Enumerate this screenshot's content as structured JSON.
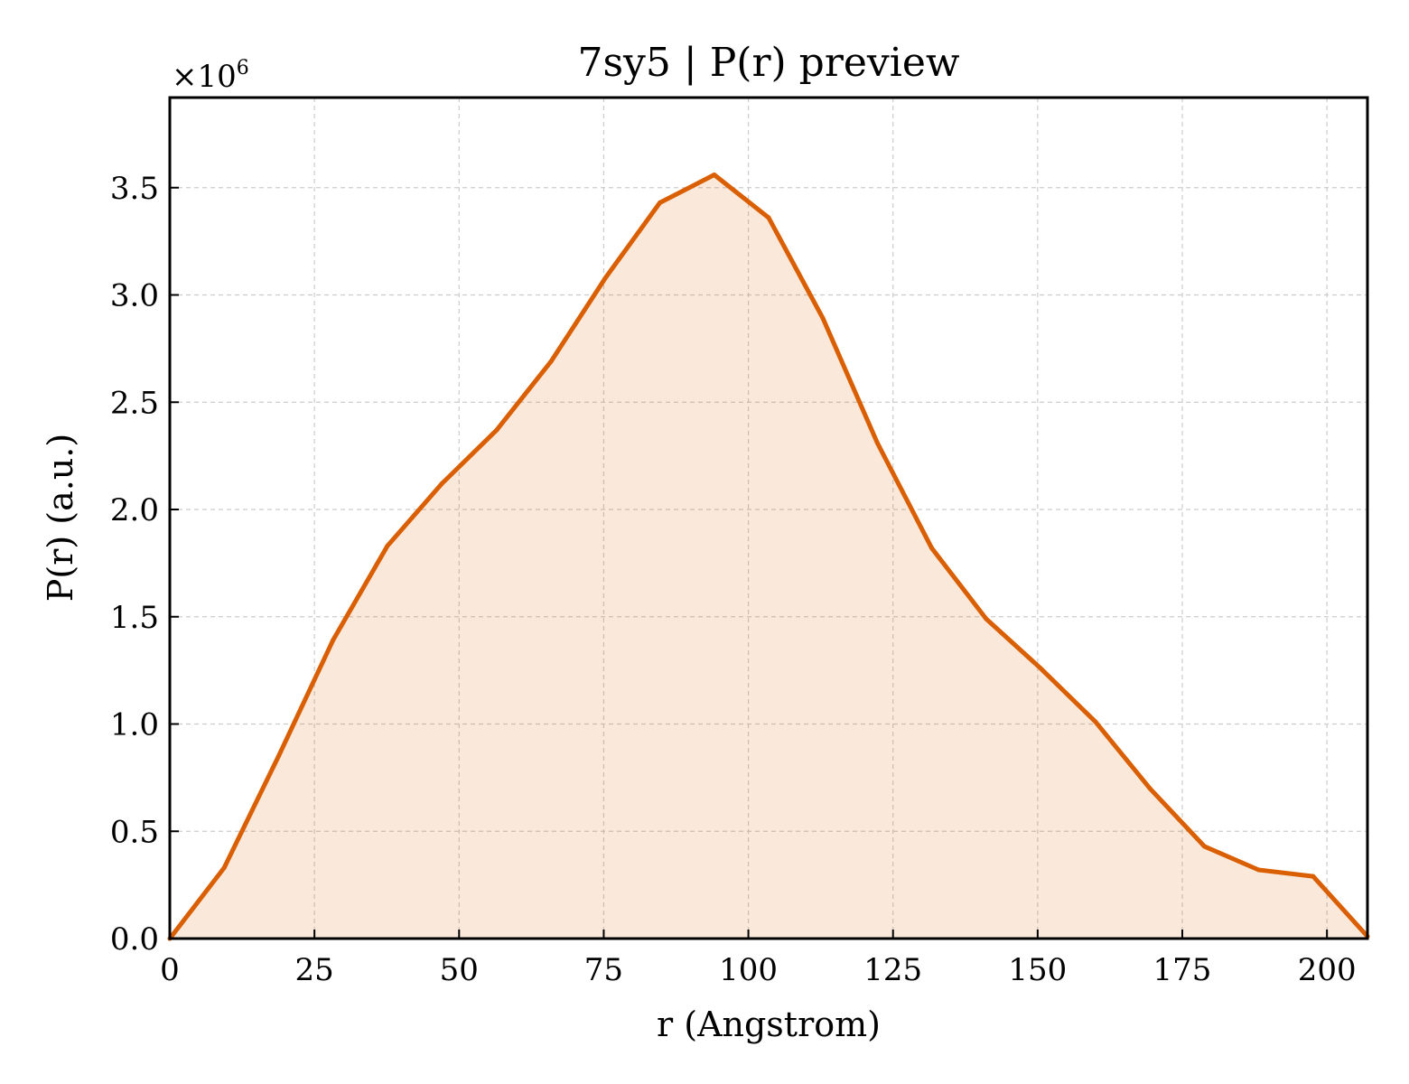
{
  "chart_data": {
    "type": "area",
    "title": "7sy5 | P(r) preview",
    "xlabel": "r (Angstrom)",
    "ylabel": "P(r) (a.u.)",
    "y_offset_label": "×10",
    "y_offset_exponent": "6",
    "xlim": [
      0,
      207
    ],
    "ylim": [
      0,
      3.92
    ],
    "x_ticks": [
      0,
      25,
      50,
      75,
      100,
      125,
      150,
      175,
      200
    ],
    "x_tick_labels": [
      "0",
      "25",
      "50",
      "75",
      "100",
      "125",
      "150",
      "175",
      "200"
    ],
    "y_ticks": [
      0,
      0.5,
      1.0,
      1.5,
      2.0,
      2.5,
      3.0,
      3.5
    ],
    "y_tick_labels": [
      "0.0",
      "0.5",
      "1.0",
      "1.5",
      "2.0",
      "2.5",
      "3.0",
      "3.5"
    ],
    "y_scale_note": "values in units of 10^6",
    "grid": true,
    "series": [
      {
        "color": "#d95f02",
        "fill_color": "#d95f02",
        "fill_opacity": 0.14,
        "x": [
          0,
          9.4,
          18.8,
          28.2,
          37.6,
          47.0,
          56.5,
          65.9,
          75.3,
          84.7,
          94.1,
          103.5,
          112.9,
          122.3,
          131.7,
          141.1,
          150.5,
          160.0,
          169.4,
          178.8,
          188.2,
          197.6,
          207.0
        ],
        "y": [
          0.0,
          0.33,
          0.85,
          1.39,
          1.83,
          2.12,
          2.37,
          2.69,
          3.08,
          3.43,
          3.56,
          3.36,
          2.89,
          2.31,
          1.82,
          1.49,
          1.26,
          1.01,
          0.7,
          0.43,
          0.32,
          0.29,
          0.01
        ]
      }
    ]
  }
}
